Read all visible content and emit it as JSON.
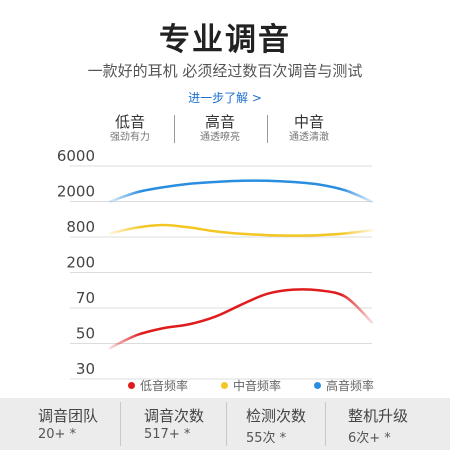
{
  "header": {
    "title": "专业调音",
    "subtitle": "一款好的耳机 必须经过数百次调音与测试",
    "learn_more": "进一步了解 >"
  },
  "bands": [
    {
      "name": "低音",
      "desc": "强劲有力"
    },
    {
      "name": "高音",
      "desc": "通透嘹亮"
    },
    {
      "name": "中音",
      "desc": "通透清澈"
    }
  ],
  "chart_data": {
    "type": "line",
    "y_ticks": [
      "6000",
      "2000",
      "800",
      "200",
      "70",
      "50",
      "30"
    ],
    "x": [
      0,
      0.1,
      0.2,
      0.3,
      0.4,
      0.5,
      0.6,
      0.7,
      0.8,
      0.9,
      1.0
    ],
    "series": [
      {
        "name": "低音频率",
        "color": "#e01b1b",
        "values": [
          40,
          48,
          52,
          54,
          58,
          65,
          77,
          87,
          85,
          70,
          55
        ]
      },
      {
        "name": "中音频率",
        "color": "#f3c623",
        "values": [
          600,
          750,
          820,
          760,
          650,
          590,
          560,
          550,
          560,
          600,
          680
        ]
      },
      {
        "name": "高音频率",
        "color": "#2a8de0",
        "values": [
          1500,
          1900,
          2200,
          2450,
          2600,
          2700,
          2700,
          2600,
          2400,
          2000,
          1500
        ]
      }
    ],
    "grid": "horizontal"
  },
  "legend": [
    "低音频率",
    "中音频率",
    "高音频率"
  ],
  "stats": [
    {
      "label": "调音团队",
      "value": "20+ *"
    },
    {
      "label": "调音次数",
      "value": "517+ *"
    },
    {
      "label": "检测次数",
      "value": "55次 *"
    },
    {
      "label": "整机升级",
      "value": "6次+ *"
    }
  ]
}
